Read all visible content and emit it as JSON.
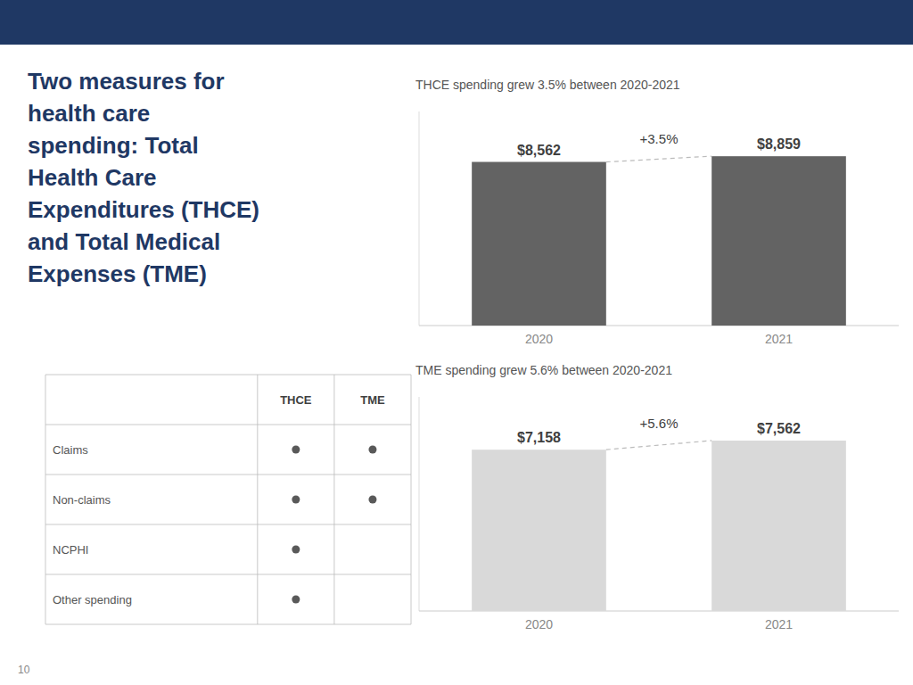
{
  "title": "Two measures for\nhealth care\nspending: Total\nHealth Care\nExpenditures (THCE)\nand Total Medical\nExpenses (TME)",
  "page_number": "10",
  "table": {
    "columns": [
      "THCE",
      "TME"
    ],
    "rows": [
      "Claims",
      "Non-claims",
      "NCPHI",
      "Other spending"
    ],
    "cells": [
      [
        true,
        true
      ],
      [
        true,
        true
      ],
      [
        true,
        false
      ],
      [
        true,
        false
      ]
    ],
    "color": "#595959"
  },
  "chart_data": [
    {
      "type": "bar",
      "title": "THCE spending grew 3.5% between 2020-2021",
      "categories": [
        "2020",
        "2021"
      ],
      "values": [
        8562,
        8859
      ],
      "value_labels": [
        "$8,562",
        "$8,859"
      ],
      "data_labels": true,
      "annotations": [
        "+3.5%"
      ],
      "color": "#636363",
      "ylim": [
        0,
        11200
      ],
      "tick_labels": "x"
    },
    {
      "type": "bar",
      "title": "TME spending grew 5.6% between 2020-2021",
      "categories": [
        "2020",
        "2021"
      ],
      "values": [
        7158,
        7562
      ],
      "value_labels": [
        "$7,158",
        "$7,562"
      ],
      "data_labels": true,
      "annotations": [
        "+5.6%"
      ],
      "color": "#d9d9d9",
      "ylim": [
        0,
        9500
      ],
      "tick_labels": "x"
    }
  ]
}
